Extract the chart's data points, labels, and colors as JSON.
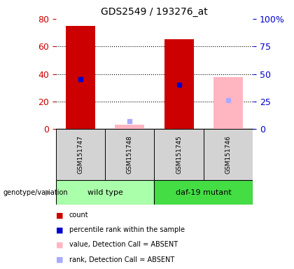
{
  "title": "GDS2549 / 193276_at",
  "samples": [
    "GSM151747",
    "GSM151748",
    "GSM151745",
    "GSM151746"
  ],
  "count_values": [
    75,
    null,
    65,
    null
  ],
  "percentile_values": [
    36,
    null,
    32,
    null
  ],
  "absent_value_values": [
    null,
    3,
    null,
    38
  ],
  "absent_rank_values": [
    null,
    6,
    null,
    21
  ],
  "left_ylim": [
    0,
    80
  ],
  "right_ylim": [
    0,
    100
  ],
  "left_yticks": [
    0,
    20,
    40,
    60,
    80
  ],
  "right_yticks": [
    0,
    25,
    50,
    75,
    100
  ],
  "right_yticklabels": [
    "0",
    "25",
    "50",
    "75",
    "100%"
  ],
  "bar_width": 0.6,
  "count_color": "#CC0000",
  "percentile_color": "#0000CC",
  "absent_value_color": "#FFB6C1",
  "absent_rank_color": "#AAAAFF",
  "left_tick_color": "#CC0000",
  "right_tick_color": "#0000CC",
  "grid_color": "#000000",
  "bg_color": "#FFFFFF",
  "plot_bg_color": "#FFFFFF",
  "sample_box_color": "#D3D3D3",
  "wt_color": "#AAFFAA",
  "daf_color": "#44DD44",
  "legend_items": [
    {
      "label": "count",
      "color": "#CC0000"
    },
    {
      "label": "percentile rank within the sample",
      "color": "#0000CC"
    },
    {
      "label": "value, Detection Call = ABSENT",
      "color": "#FFB6C1"
    },
    {
      "label": "rank, Detection Call = ABSENT",
      "color": "#AAAAFF"
    }
  ],
  "genotype_label": "genotype/variation"
}
